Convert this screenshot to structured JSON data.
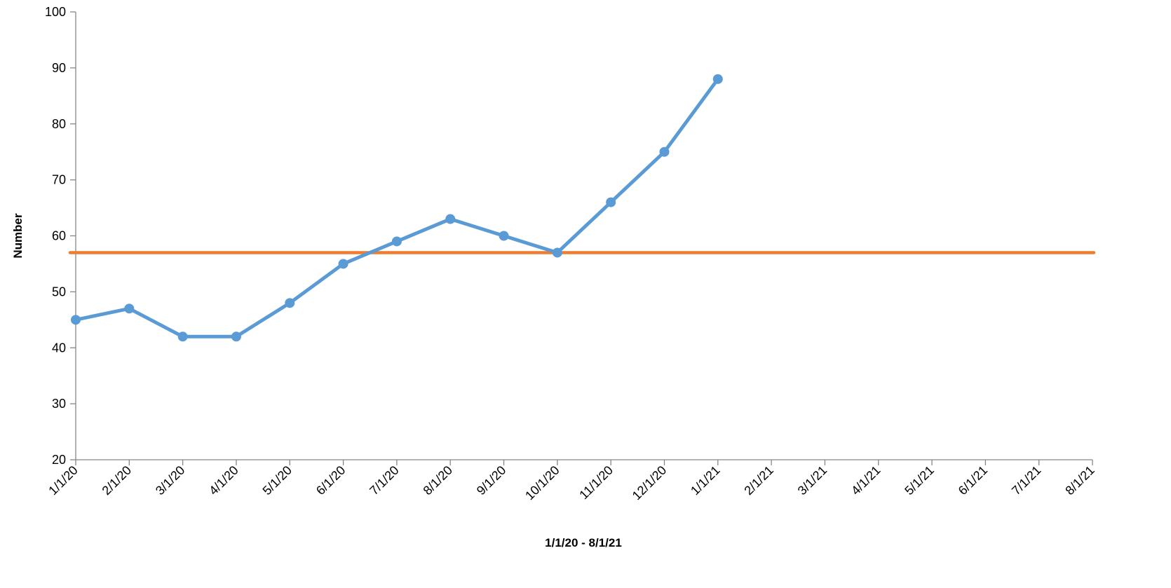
{
  "chart_data": {
    "type": "line",
    "xlabel": "1/1/20 - 8/1/21",
    "ylabel": "Number",
    "ylim": [
      20,
      100
    ],
    "yticks": [
      20,
      30,
      40,
      50,
      60,
      70,
      80,
      90,
      100
    ],
    "grid": false,
    "legend": "none",
    "categories": [
      "1/1/20",
      "2/1/20",
      "3/1/20",
      "4/1/20",
      "5/1/20",
      "6/1/20",
      "7/1/20",
      "8/1/20",
      "9/1/20",
      "10/1/20",
      "11/1/20",
      "12/1/20",
      "1/1/21",
      "2/1/21",
      "3/1/21",
      "4/1/21",
      "5/1/21",
      "6/1/21",
      "7/1/21",
      "8/1/21"
    ],
    "series": [
      {
        "color": "#5B9BD5",
        "markers": true,
        "values": [
          45,
          47,
          42,
          42,
          48,
          55,
          59,
          63,
          60,
          57,
          66,
          75,
          88,
          null,
          null,
          null,
          null,
          null,
          null,
          null
        ]
      },
      {
        "color": "#ED7D31",
        "markers": false,
        "values": [
          57,
          57,
          57,
          57,
          57,
          57,
          57,
          57,
          57,
          57,
          57,
          57,
          57,
          57,
          57,
          57,
          57,
          57,
          57,
          57
        ]
      }
    ]
  }
}
